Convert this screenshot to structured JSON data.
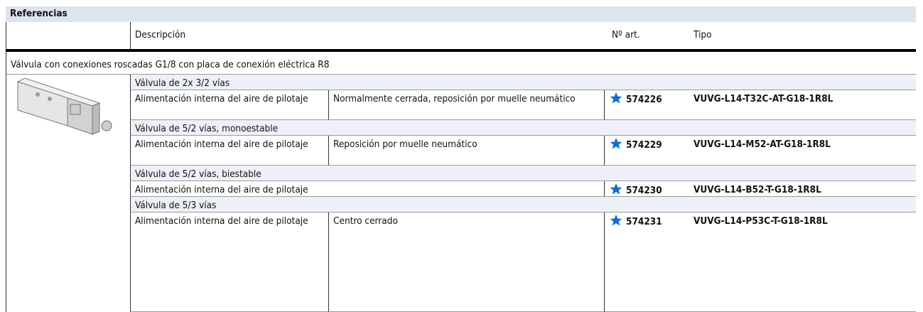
{
  "header": {
    "title": "Referencias"
  },
  "table": {
    "columns": [
      "Descripción",
      "Nº art.",
      "Tipo"
    ],
    "section": "Válvula con conexiones roscadas G1/8 con placa de conexión eléctrica R8",
    "groups": [
      {
        "title": "Válvula de 2x 3/2 vías",
        "rows": [
          {
            "feature": "Alimentación interna del aire de pilotaje",
            "description": "Normalmente cerrada, reposición por muelle neumático",
            "article": "574226",
            "type": "VUVG-L14-T32C-AT-G18-1R8L"
          }
        ]
      },
      {
        "title": "Válvula de 5/2 vías, monoestable",
        "rows": [
          {
            "feature": "Alimentación interna del aire de pilotaje",
            "description": "Reposición por muelle neumático",
            "article": "574229",
            "type": "VUVG-L14-M52-AT-G18-1R8L"
          }
        ]
      },
      {
        "title": "Válvula de 5/2 vías, biestable",
        "rows": [
          {
            "feature": "Alimentación interna del aire de pilotaje",
            "article": "574230",
            "type": "VUVG-L14-B52-T-G18-1R8L"
          }
        ]
      },
      {
        "title": "Válvula de 5/3 vías",
        "rows": [
          {
            "feature": "Alimentación interna del aire de pilotaje",
            "description": "Centro cerrado",
            "article": "574231",
            "type": "VUVG-L14-P53C-T-G18-1R8L"
          }
        ]
      }
    ]
  }
}
